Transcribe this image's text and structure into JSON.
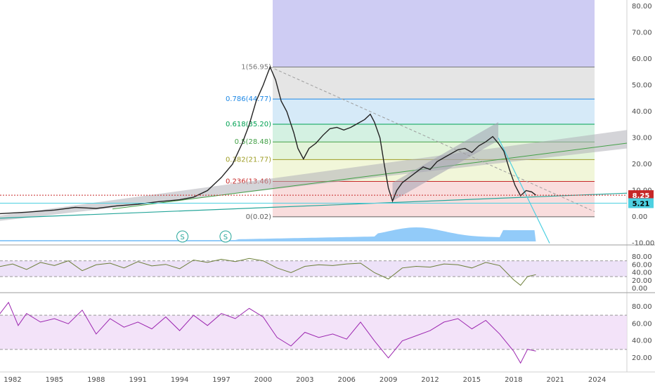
{
  "chart_data": {
    "type": "line",
    "x_labels": [
      "1982",
      "1985",
      "1988",
      "1991",
      "1994",
      "1997",
      "2000",
      "2003",
      "2006",
      "2009",
      "2012",
      "2015",
      "2018",
      "2021",
      "2024"
    ],
    "price_axis_labels": [
      "80.00",
      "70.00",
      "60.00",
      "50.00",
      "40.00",
      "30.00",
      "20.00",
      "10.00",
      "0.00",
      "-10.00"
    ],
    "rsi_axis_labels": [
      "80.00",
      "60.00",
      "40.00",
      "20.00",
      "0.00"
    ],
    "rsi2_axis_labels": [
      "80.00",
      "60.00",
      "40.00",
      "20.00"
    ],
    "price_ylim": [
      -10,
      80
    ],
    "last_price": {
      "value": 8.25,
      "label": "8.25",
      "color": "#c62828"
    },
    "support_level": {
      "value": 5.21,
      "label": "5.21",
      "color": "#4dd0e1"
    },
    "fibonacci": {
      "levels": [
        {
          "ratio": 1,
          "price": 56.95,
          "label": "1(56.95)",
          "color": "#787878"
        },
        {
          "ratio": 0.786,
          "price": 44.77,
          "label": "0.786(44.77)",
          "color": "#1e88e5"
        },
        {
          "ratio": 0.618,
          "price": 35.2,
          "label": "0.618(35.20)",
          "color": "#00a152"
        },
        {
          "ratio": 0.5,
          "price": 28.48,
          "label": "0.5(28.48)",
          "color": "#43a047"
        },
        {
          "ratio": 0.382,
          "price": 21.77,
          "label": "0.382(21.77)",
          "color": "#9e9d24"
        },
        {
          "ratio": 0.236,
          "price": 13.46,
          "label": "0.236(13.46)",
          "color": "#c62828"
        },
        {
          "ratio": 0,
          "price": 0.02,
          "label": "0(0.02)",
          "color": "#616161"
        }
      ],
      "zone_colors": [
        "#e0e0e0",
        "#cfe6f7",
        "#cdeedd",
        "#dff2d3",
        "#eef5d2",
        "#f8d7d7"
      ]
    },
    "price_series": [
      [
        1981.0,
        1.2
      ],
      [
        1983.0,
        1.8
      ],
      [
        1985.0,
        2.6
      ],
      [
        1986.5,
        3.6
      ],
      [
        1988.0,
        3.2
      ],
      [
        1989.5,
        4.2
      ],
      [
        1991.0,
        4.8
      ],
      [
        1992.5,
        5.8
      ],
      [
        1994.0,
        6.5
      ],
      [
        1995.0,
        7.5
      ],
      [
        1996.0,
        10.0
      ],
      [
        1997.0,
        15.0
      ],
      [
        1997.8,
        20.0
      ],
      [
        1998.5,
        28.0
      ],
      [
        1999.0,
        35.0
      ],
      [
        1999.5,
        44.0
      ],
      [
        2000.0,
        50.0
      ],
      [
        2000.5,
        56.95
      ],
      [
        2000.9,
        52.0
      ],
      [
        2001.3,
        44.0
      ],
      [
        2001.7,
        40.0
      ],
      [
        2002.2,
        32.0
      ],
      [
        2002.5,
        26.0
      ],
      [
        2002.9,
        22.0
      ],
      [
        2003.3,
        26.0
      ],
      [
        2003.8,
        28.0
      ],
      [
        2004.3,
        31.0
      ],
      [
        2004.8,
        33.5
      ],
      [
        2005.3,
        34.0
      ],
      [
        2005.8,
        33.0
      ],
      [
        2006.3,
        34.0
      ],
      [
        2006.8,
        35.5
      ],
      [
        2007.3,
        37.0
      ],
      [
        2007.7,
        39.0
      ],
      [
        2008.0,
        36.0
      ],
      [
        2008.4,
        30.0
      ],
      [
        2008.7,
        20.0
      ],
      [
        2009.0,
        11.0
      ],
      [
        2009.3,
        6.0
      ],
      [
        2009.6,
        10.0
      ],
      [
        2010.0,
        13.0
      ],
      [
        2010.5,
        15.0
      ],
      [
        2011.0,
        17.0
      ],
      [
        2011.5,
        19.0
      ],
      [
        2012.0,
        18.0
      ],
      [
        2012.5,
        21.0
      ],
      [
        2013.0,
        22.5
      ],
      [
        2013.5,
        24.0
      ],
      [
        2014.0,
        25.5
      ],
      [
        2014.5,
        26.0
      ],
      [
        2015.0,
        24.5
      ],
      [
        2015.5,
        27.0
      ],
      [
        2016.0,
        28.5
      ],
      [
        2016.5,
        30.5
      ],
      [
        2016.9,
        28.0
      ],
      [
        2017.3,
        25.0
      ],
      [
        2017.7,
        18.0
      ],
      [
        2018.1,
        12.0
      ],
      [
        2018.5,
        8.0
      ],
      [
        2018.9,
        10.0
      ],
      [
        2019.3,
        9.5
      ],
      [
        2019.6,
        8.25
      ]
    ],
    "rsi_series": [
      [
        1981.0,
        55
      ],
      [
        1982.0,
        62
      ],
      [
        1983.0,
        48
      ],
      [
        1984.0,
        66
      ],
      [
        1985.0,
        58
      ],
      [
        1986.0,
        70
      ],
      [
        1987.0,
        45
      ],
      [
        1988.0,
        60
      ],
      [
        1989.0,
        64
      ],
      [
        1990.0,
        52
      ],
      [
        1991.0,
        68
      ],
      [
        1992.0,
        57
      ],
      [
        1993.0,
        61
      ],
      [
        1994.0,
        50
      ],
      [
        1995.0,
        72
      ],
      [
        1996.0,
        66
      ],
      [
        1997.0,
        74
      ],
      [
        1998.0,
        68
      ],
      [
        1999.0,
        76
      ],
      [
        2000.0,
        70
      ],
      [
        2001.0,
        52
      ],
      [
        2002.0,
        40
      ],
      [
        2003.0,
        56
      ],
      [
        2004.0,
        60
      ],
      [
        2005.0,
        58
      ],
      [
        2006.0,
        62
      ],
      [
        2007.0,
        64
      ],
      [
        2008.0,
        40
      ],
      [
        2009.0,
        24
      ],
      [
        2010.0,
        52
      ],
      [
        2011.0,
        56
      ],
      [
        2012.0,
        54
      ],
      [
        2013.0,
        62
      ],
      [
        2014.0,
        60
      ],
      [
        2015.0,
        52
      ],
      [
        2016.0,
        66
      ],
      [
        2017.0,
        58
      ],
      [
        2018.0,
        22
      ],
      [
        2018.5,
        8
      ],
      [
        2019.0,
        30
      ],
      [
        2019.6,
        35
      ]
    ],
    "rsi2_series": [
      [
        1981.0,
        70
      ],
      [
        1981.7,
        85
      ],
      [
        1982.4,
        58
      ],
      [
        1983.0,
        72
      ],
      [
        1984.0,
        62
      ],
      [
        1985.0,
        66
      ],
      [
        1986.0,
        60
      ],
      [
        1987.0,
        76
      ],
      [
        1988.0,
        48
      ],
      [
        1989.0,
        66
      ],
      [
        1990.0,
        56
      ],
      [
        1991.0,
        62
      ],
      [
        1992.0,
        54
      ],
      [
        1993.0,
        68
      ],
      [
        1994.0,
        52
      ],
      [
        1995.0,
        70
      ],
      [
        1996.0,
        58
      ],
      [
        1997.0,
        72
      ],
      [
        1998.0,
        66
      ],
      [
        1999.0,
        78
      ],
      [
        2000.0,
        68
      ],
      [
        2001.0,
        44
      ],
      [
        2002.0,
        34
      ],
      [
        2003.0,
        50
      ],
      [
        2004.0,
        44
      ],
      [
        2005.0,
        48
      ],
      [
        2006.0,
        42
      ],
      [
        2007.0,
        62
      ],
      [
        2008.0,
        40
      ],
      [
        2009.0,
        20
      ],
      [
        2010.0,
        40
      ],
      [
        2011.0,
        46
      ],
      [
        2012.0,
        52
      ],
      [
        2013.0,
        62
      ],
      [
        2014.0,
        66
      ],
      [
        2015.0,
        54
      ],
      [
        2016.0,
        64
      ],
      [
        2017.0,
        48
      ],
      [
        2018.0,
        28
      ],
      [
        2018.5,
        14
      ],
      [
        2019.0,
        30
      ],
      [
        2019.6,
        28
      ]
    ],
    "markers": [
      {
        "label": "S",
        "x": 1994.2
      },
      {
        "label": "S",
        "x": 1997.3
      }
    ]
  }
}
